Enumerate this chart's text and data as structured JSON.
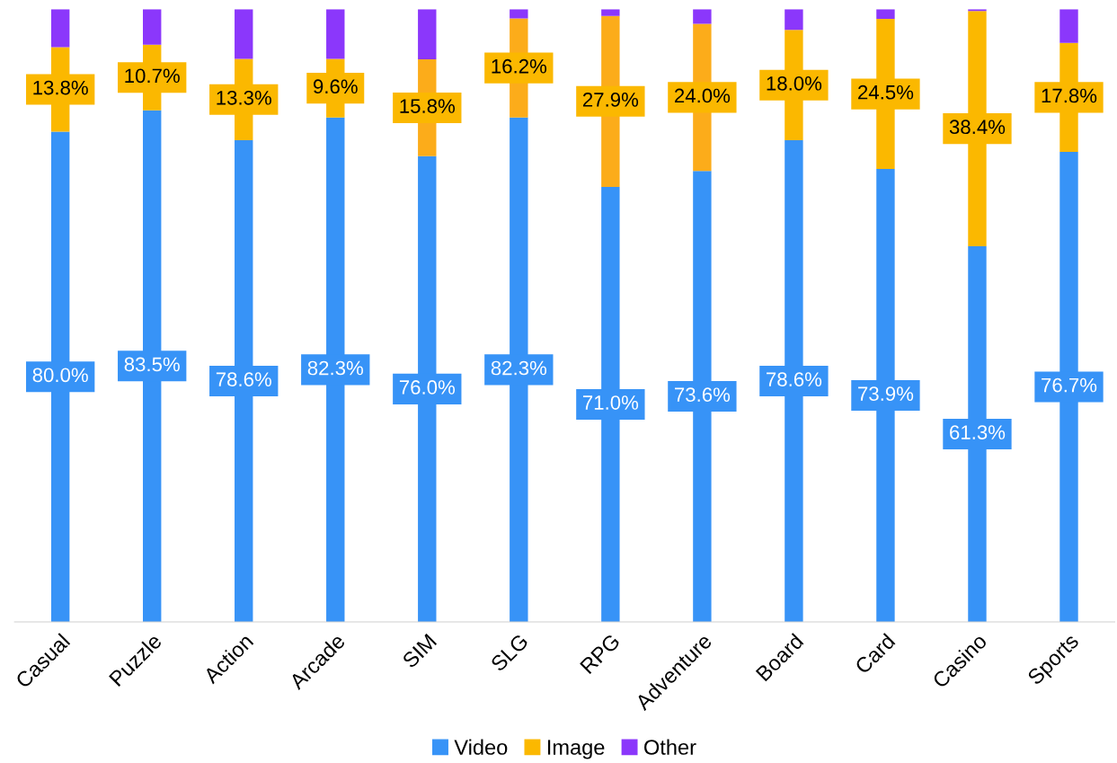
{
  "chart_data": {
    "type": "bar",
    "stacked": true,
    "categories": [
      "Casual",
      "Puzzle",
      "Action",
      "Arcade",
      "SIM",
      "SLG",
      "RPG",
      "Adventure",
      "Board",
      "Card",
      "Casino",
      "Sports"
    ],
    "series": [
      {
        "name": "Video",
        "color": "#3793f7",
        "values": [
          80.0,
          83.5,
          78.6,
          82.3,
          76.0,
          82.3,
          71.0,
          73.6,
          78.6,
          73.9,
          61.3,
          76.7
        ],
        "value_labels": [
          "80.0%",
          "83.5%",
          "78.6%",
          "82.3%",
          "76.0%",
          "82.3%",
          "71.0%",
          "73.6%",
          "78.6%",
          "73.9%",
          "61.3%",
          "76.7%"
        ]
      },
      {
        "name": "Image",
        "color": "#fbb800",
        "colors": [
          "#fbb800",
          "#fbb800",
          "#fbb800",
          "#fbb800",
          "#fcac1a",
          "#fcac1a",
          "#fcac1a",
          "#fcac1a",
          "#fbb800",
          "#fbb800",
          "#fbb800",
          "#fbb800"
        ],
        "values": [
          13.8,
          10.7,
          13.3,
          9.6,
          15.8,
          16.2,
          27.9,
          24.0,
          18.0,
          24.5,
          38.4,
          17.8
        ],
        "value_labels": [
          "13.8%",
          "10.7%",
          "13.3%",
          "9.6%",
          "15.8%",
          "16.2%",
          "27.9%",
          "24.0%",
          "18.0%",
          "24.5%",
          "38.4%",
          "17.8%"
        ]
      },
      {
        "name": "Other",
        "color": "#8b37fb",
        "values": [
          6.2,
          5.8,
          8.1,
          8.1,
          8.2,
          1.5,
          1.1,
          2.4,
          3.4,
          1.6,
          0.3,
          5.5
        ]
      }
    ],
    "ylim": [
      0,
      100
    ],
    "tick_labels": "x",
    "grid": false,
    "legend": "bottom"
  }
}
